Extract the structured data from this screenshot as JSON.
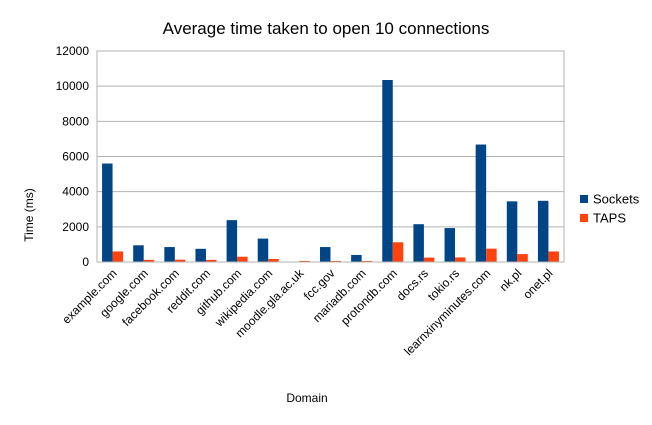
{
  "chart_data": {
    "type": "bar",
    "title": "Average time taken to open 10 connections",
    "xlabel": "Domain",
    "ylabel": "Time (ms)",
    "ylim": [
      0,
      12000
    ],
    "yticks": [
      0,
      2000,
      4000,
      6000,
      8000,
      10000,
      12000
    ],
    "grid": true,
    "legend_position": "right",
    "categories": [
      "example.com",
      "google.com",
      "facebook.com",
      "reddit.com",
      "github.com",
      "wikipedia.com",
      "moodle.gla.ac.uk",
      "fcc.gov",
      "mariadb.com",
      "protondb.com",
      "docs.rs",
      "tokio.rs",
      "learnxinyminutes.com",
      "nk.pl",
      "onet.pl"
    ],
    "series": [
      {
        "name": "Sockets",
        "color": "#004586",
        "values": [
          5600,
          950,
          850,
          750,
          2380,
          1330,
          20,
          850,
          400,
          10350,
          2150,
          1930,
          6680,
          3450,
          3480
        ]
      },
      {
        "name": "TAPS",
        "color": "#ff420e",
        "values": [
          600,
          120,
          130,
          120,
          300,
          170,
          60,
          60,
          60,
          1120,
          250,
          260,
          760,
          450,
          600
        ]
      }
    ]
  }
}
